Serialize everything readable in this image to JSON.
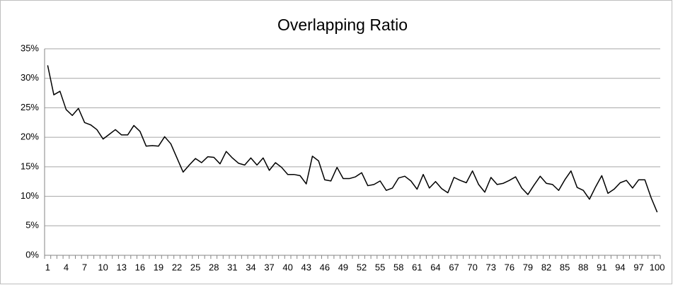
{
  "chart_data": {
    "type": "line",
    "title": "Overlapping Ratio",
    "categories": [
      1,
      null,
      null,
      4,
      null,
      null,
      7,
      null,
      null,
      10,
      null,
      null,
      13,
      null,
      null,
      16,
      null,
      null,
      19,
      null,
      null,
      22,
      null,
      null,
      25,
      null,
      null,
      28,
      null,
      null,
      31,
      null,
      null,
      34,
      null,
      null,
      37,
      null,
      null,
      40,
      null,
      null,
      43,
      null,
      null,
      46,
      null,
      null,
      49,
      null,
      null,
      52,
      null,
      null,
      55,
      null,
      null,
      58,
      null,
      null,
      61,
      null,
      null,
      64,
      null,
      null,
      67,
      null,
      null,
      70,
      null,
      null,
      73,
      null,
      null,
      76,
      null,
      null,
      79,
      null,
      null,
      82,
      null,
      null,
      85,
      null,
      null,
      88,
      null,
      null,
      91,
      null,
      null,
      94,
      null,
      null,
      97,
      null,
      null,
      100
    ],
    "series": [
      {
        "name": "Overlapping Ratio",
        "color": "#000000",
        "values": [
          32.2,
          27.2,
          27.8,
          24.7,
          23.7,
          24.9,
          22.5,
          22.1,
          21.3,
          19.7,
          20.5,
          21.3,
          20.4,
          20.4,
          22.0,
          21.0,
          18.5,
          18.6,
          18.5,
          20.1,
          18.9,
          16.5,
          14.1,
          15.3,
          16.4,
          15.7,
          16.7,
          16.6,
          15.5,
          17.6,
          16.5,
          15.6,
          15.3,
          16.5,
          15.3,
          16.5,
          14.4,
          15.7,
          14.9,
          13.7,
          13.7,
          13.5,
          12.1,
          16.8,
          16.0,
          12.8,
          12.6,
          14.9,
          13.0,
          13.0,
          13.3,
          14.0,
          11.8,
          12.0,
          12.6,
          11.0,
          11.4,
          13.1,
          13.4,
          12.6,
          11.2,
          13.7,
          11.4,
          12.5,
          11.3,
          10.6,
          13.2,
          12.7,
          12.3,
          14.3,
          12.0,
          10.7,
          13.2,
          12.0,
          12.2,
          12.7,
          13.3,
          11.4,
          10.3,
          11.9,
          13.4,
          12.2,
          12.0,
          11.0,
          12.8,
          14.3,
          11.5,
          11.0,
          9.5,
          11.6,
          13.5,
          10.5,
          11.2,
          12.3,
          12.7,
          11.4,
          12.8,
          12.8,
          9.8,
          7.3
        ]
      }
    ],
    "ylim": [
      0,
      35
    ],
    "yticks": [
      {
        "value": 0,
        "label": "0%"
      },
      {
        "value": 5,
        "label": "5%"
      },
      {
        "value": 10,
        "label": "10%"
      },
      {
        "value": 15,
        "label": "15%"
      },
      {
        "value": 20,
        "label": "20%"
      },
      {
        "value": 25,
        "label": "25%"
      },
      {
        "value": 30,
        "label": "30%"
      },
      {
        "value": 35,
        "label": "35%"
      }
    ],
    "grid": true
  }
}
